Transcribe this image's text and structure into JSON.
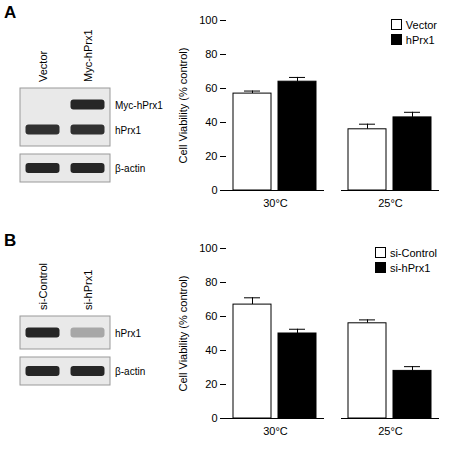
{
  "chart_data": [
    {
      "type": "bar",
      "categories": [
        "30°C",
        "25°C"
      ],
      "ylabel": "Cell Viability (% control)",
      "ylim": [
        0,
        100
      ],
      "yticks": [
        0,
        20,
        40,
        60,
        80,
        100
      ],
      "legend": "top-right",
      "series": [
        {
          "name": "Vector",
          "color": "#ffffff",
          "values": [
            57,
            36
          ],
          "errors": [
            1.5,
            3
          ]
        },
        {
          "name": "hPrx1",
          "color": "#000000",
          "values": [
            64,
            43
          ],
          "errors": [
            2.5,
            3
          ]
        }
      ]
    },
    {
      "type": "bar",
      "categories": [
        "30°C",
        "25°C"
      ],
      "ylabel": "Cell Viability (% control)",
      "ylim": [
        0,
        100
      ],
      "yticks": [
        0,
        20,
        40,
        60,
        80,
        100
      ],
      "legend": "top-right",
      "series": [
        {
          "name": "si-Control",
          "color": "#ffffff",
          "values": [
            67,
            56
          ],
          "errors": [
            4,
            2
          ]
        },
        {
          "name": "si-hPrx1",
          "color": "#000000",
          "values": [
            50,
            28
          ],
          "errors": [
            2.5,
            2.5
          ]
        }
      ]
    }
  ],
  "panels": [
    {
      "label": "A",
      "blot": {
        "lanes": [
          "Vector",
          "Myc-hPrx1"
        ],
        "bands": [
          {
            "name": "Myc-hPrx1",
            "intensity": [
              0,
              0.9
            ]
          },
          {
            "name": "hPrx1",
            "intensity": [
              0.85,
              0.85
            ]
          },
          {
            "name": "β-actin",
            "intensity": [
              0.9,
              0.9
            ]
          }
        ]
      }
    },
    {
      "label": "B",
      "blot": {
        "lanes": [
          "si-Control",
          "si-hPrx1"
        ],
        "bands": [
          {
            "name": "hPrx1",
            "intensity": [
              0.9,
              0.3
            ]
          },
          {
            "name": "β-actin",
            "intensity": [
              0.9,
              0.9
            ]
          }
        ]
      }
    }
  ]
}
